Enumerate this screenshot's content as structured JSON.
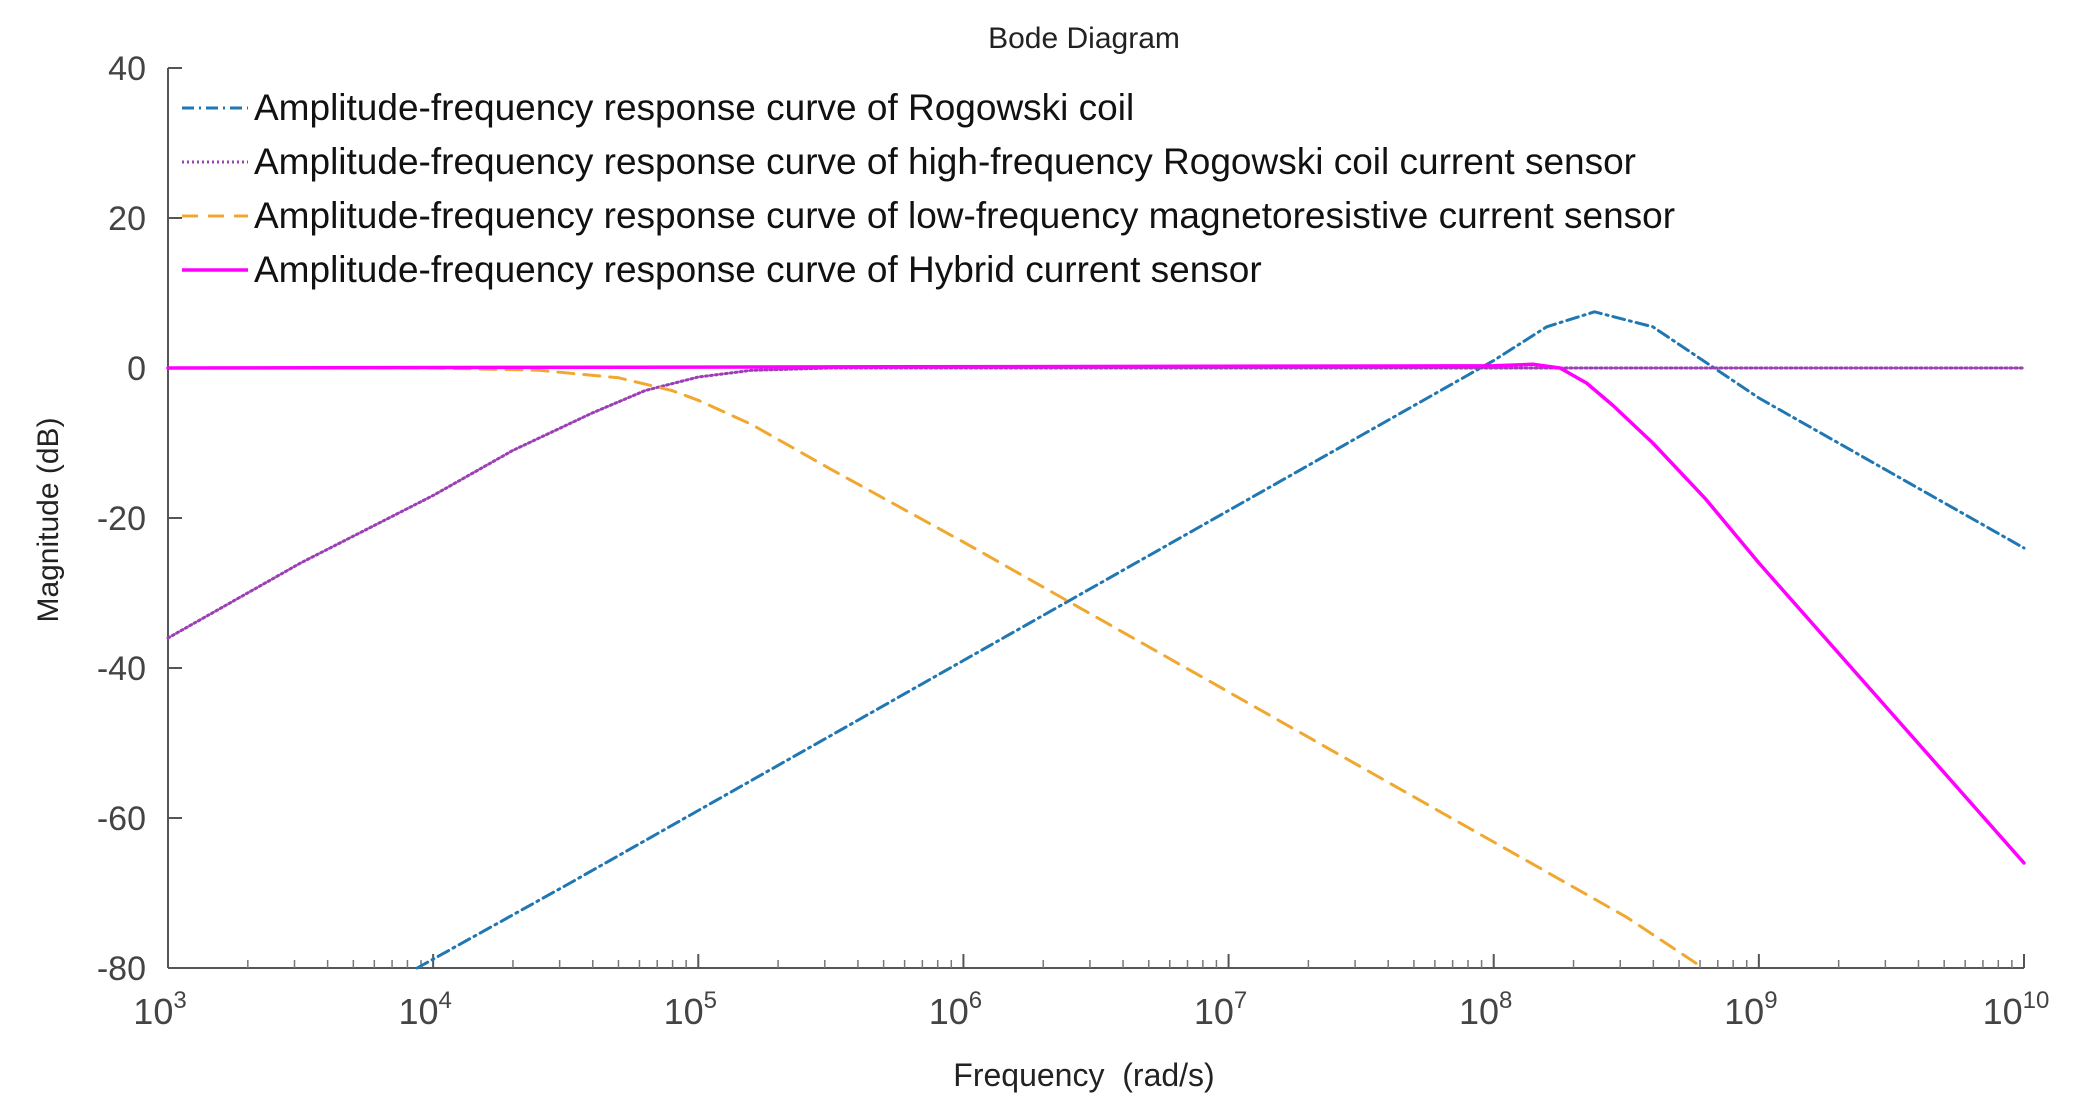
{
  "chart_data": {
    "type": "line",
    "title": "Bode Diagram",
    "xlabel": "Frequency  (rad/s)",
    "ylabel": "Magnitude (dB)",
    "xscale": "log",
    "xlim_exp": [
      3,
      10
    ],
    "ylim": [
      -80,
      40
    ],
    "x_ticks": [
      {
        "base": "10",
        "exp": "3"
      },
      {
        "base": "10",
        "exp": "4"
      },
      {
        "base": "10",
        "exp": "5"
      },
      {
        "base": "10",
        "exp": "6"
      },
      {
        "base": "10",
        "exp": "7"
      },
      {
        "base": "10",
        "exp": "8"
      },
      {
        "base": "10",
        "exp": "9"
      },
      {
        "base": "10",
        "exp": "10"
      }
    ],
    "y_ticks": [
      "40",
      "20",
      "0",
      "-20",
      "-40",
      "-60",
      "-80"
    ],
    "legend_position": "top-left",
    "series": [
      {
        "name": "Amplitude-frequency response curve of Rogowski coil",
        "color": "#1f77b4",
        "style": "dashdot",
        "log10_x": [
          3.94,
          4.5,
          5.0,
          5.5,
          6.0,
          6.5,
          7.0,
          7.5,
          7.9,
          8.0,
          8.2,
          8.38,
          8.6,
          9.0,
          9.5,
          10.0
        ],
        "y": [
          -80,
          -69,
          -59,
          -49,
          -39,
          -29,
          -19,
          -9,
          -1,
          1,
          5.5,
          7.5,
          5.5,
          -4,
          -14,
          -24
        ]
      },
      {
        "name": "Amplitude-frequency response curve of high-frequency Rogowski coil current sensor",
        "color": "#9b3fb5",
        "style": "dotted",
        "log10_x": [
          3.0,
          3.5,
          4.0,
          4.3,
          4.6,
          4.8,
          5.0,
          5.2,
          5.5,
          6.0,
          10.0
        ],
        "y": [
          -36,
          -26,
          -17,
          -11,
          -6,
          -3,
          -1.2,
          -0.3,
          0,
          0,
          0
        ]
      },
      {
        "name": "Amplitude-frequency response curve of low-frequency magnetoresistive current sensor",
        "color": "#f0a830",
        "style": "dashed",
        "log10_x": [
          3.0,
          4.0,
          4.4,
          4.7,
          4.9,
          5.0,
          5.2,
          5.5,
          6.0,
          6.5,
          7.0,
          7.5,
          8.0,
          8.5,
          8.79
        ],
        "y": [
          0,
          0,
          -0.3,
          -1.3,
          -3,
          -4.3,
          -7.5,
          -13.5,
          -23.2,
          -33.2,
          -43.2,
          -53.2,
          -63.2,
          -73.2,
          -80
        ]
      },
      {
        "name": "Amplitude-frequency response curve of Hybrid current sensor",
        "color": "#ff00ff",
        "style": "solid",
        "log10_x": [
          3.0,
          8.0,
          8.15,
          8.25,
          8.35,
          8.45,
          8.6,
          8.8,
          9.0,
          9.5,
          10.0
        ],
        "y": [
          0,
          0.3,
          0.5,
          0,
          -2,
          -5,
          -10,
          -17.5,
          -26,
          -46,
          -66
        ]
      }
    ]
  }
}
